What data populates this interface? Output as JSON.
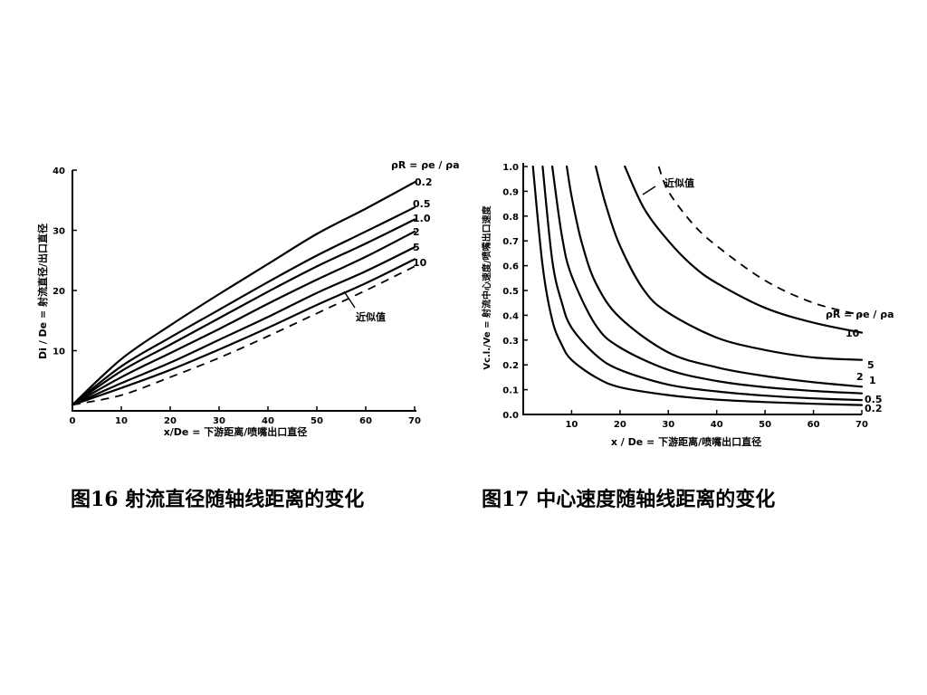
{
  "chart_data": [
    {
      "type": "line",
      "id": "fig16",
      "caption": "图16  射流直径随轴线距离的变化",
      "ylabel": "Di / De = 射流直径/出口直径",
      "xlabel": "x/De = 下游距离/喷嘴出口直径",
      "legend_title": "ρR = ρe / ρa",
      "xlim": [
        0,
        70
      ],
      "ylim": [
        0,
        40
      ],
      "x_ticks": [
        0,
        10,
        20,
        30,
        40,
        50,
        60,
        70
      ],
      "y_ticks": [
        10,
        20,
        30,
        40
      ],
      "series": [
        {
          "name": "0.2",
          "x": [
            0,
            10,
            20,
            30,
            40,
            50,
            60,
            70
          ],
          "y": [
            1,
            8.6,
            14.2,
            19.4,
            24.4,
            29.4,
            33.6,
            38
          ]
        },
        {
          "name": "0.5",
          "x": [
            0,
            10,
            20,
            30,
            40,
            50,
            60,
            70
          ],
          "y": [
            1,
            7.4,
            12.2,
            16.8,
            21.4,
            25.8,
            29.8,
            33.8
          ]
        },
        {
          "name": "1.0",
          "x": [
            0,
            10,
            20,
            30,
            40,
            50,
            60,
            70
          ],
          "y": [
            1,
            6.6,
            11,
            15.4,
            19.8,
            24,
            27.8,
            31.8
          ]
        },
        {
          "name": "2",
          "x": [
            0,
            10,
            20,
            30,
            40,
            50,
            60,
            70
          ],
          "y": [
            1,
            5.6,
            9.6,
            13.6,
            17.8,
            21.8,
            25.6,
            29.8
          ]
        },
        {
          "name": "5",
          "x": [
            0,
            10,
            20,
            30,
            40,
            50,
            60,
            70
          ],
          "y": [
            1,
            4.6,
            8,
            11.8,
            15.6,
            19.6,
            23.2,
            27.2
          ]
        },
        {
          "name": "10",
          "x": [
            0,
            10,
            20,
            30,
            40,
            50,
            60,
            70
          ],
          "y": [
            1,
            3.8,
            6.8,
            10.2,
            13.8,
            17.6,
            21.2,
            25.2
          ]
        },
        {
          "name": "近似值",
          "dashed": true,
          "x": [
            0,
            10,
            20,
            30,
            40,
            50,
            60,
            70
          ],
          "y": [
            1,
            2.6,
            5.6,
            8.8,
            12.4,
            16.2,
            20,
            24
          ]
        }
      ]
    },
    {
      "type": "line",
      "id": "fig17",
      "caption": "图17  中心速度随轴线距离的变化",
      "ylabel": "Vc.l./Ve = 射流中心速度/喷嘴出口速度",
      "xlabel": "x / De = 下游距离/喷嘴出口直径",
      "legend_title": "ρR = ρe / ρa",
      "xlim": [
        0,
        70
      ],
      "ylim": [
        0,
        1.0
      ],
      "x_ticks": [
        10,
        20,
        30,
        40,
        50,
        60,
        70
      ],
      "y_ticks": [
        0,
        0.1,
        0.2,
        0.3,
        0.4,
        0.5,
        0.6,
        0.7,
        0.8,
        0.9,
        1.0
      ],
      "series": [
        {
          "name": "0.2",
          "x": [
            2,
            4,
            6,
            8,
            10,
            15,
            20,
            30,
            40,
            50,
            60,
            70
          ],
          "y": [
            1.0,
            0.6,
            0.38,
            0.28,
            0.22,
            0.15,
            0.11,
            0.078,
            0.06,
            0.05,
            0.043,
            0.038
          ]
        },
        {
          "name": "0.5",
          "x": [
            4,
            6,
            8,
            10,
            15,
            20,
            30,
            40,
            50,
            60,
            70
          ],
          "y": [
            1.0,
            0.62,
            0.45,
            0.35,
            0.24,
            0.18,
            0.12,
            0.093,
            0.076,
            0.065,
            0.058
          ]
        },
        {
          "name": "1",
          "x": [
            6,
            8,
            10,
            15,
            20,
            30,
            40,
            50,
            60,
            70
          ],
          "y": [
            1.0,
            0.72,
            0.56,
            0.36,
            0.27,
            0.18,
            0.135,
            0.11,
            0.095,
            0.085
          ]
        },
        {
          "name": "2",
          "x": [
            9,
            10,
            12,
            15,
            20,
            30,
            40,
            50,
            60,
            70
          ],
          "y": [
            1.0,
            0.88,
            0.7,
            0.53,
            0.39,
            0.25,
            0.19,
            0.155,
            0.13,
            0.112
          ]
        },
        {
          "name": "5",
          "x": [
            15,
            17,
            20,
            25,
            30,
            40,
            50,
            60,
            70
          ],
          "y": [
            1.0,
            0.85,
            0.68,
            0.5,
            0.41,
            0.31,
            0.26,
            0.23,
            0.22
          ]
        },
        {
          "name": "10",
          "x": [
            21,
            25,
            30,
            35,
            40,
            50,
            60,
            70
          ],
          "y": [
            1.0,
            0.83,
            0.7,
            0.6,
            0.53,
            0.43,
            0.37,
            0.33
          ]
        },
        {
          "name": "近似值",
          "dashed": true,
          "x": [
            28,
            30,
            35,
            40,
            50,
            60,
            70
          ],
          "y": [
            1.0,
            0.9,
            0.77,
            0.68,
            0.54,
            0.45,
            0.4
          ]
        }
      ]
    }
  ]
}
